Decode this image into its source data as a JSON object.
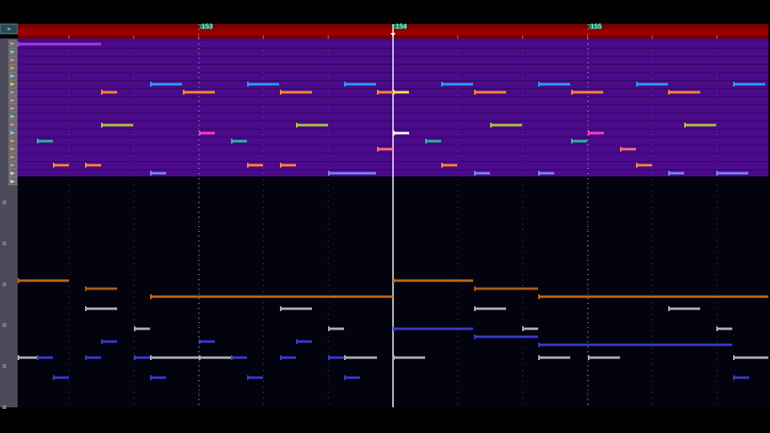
{
  "toolbar": {
    "button": "»"
  },
  "timeline": {
    "markers": [
      "153",
      "154",
      "155"
    ]
  }
}
